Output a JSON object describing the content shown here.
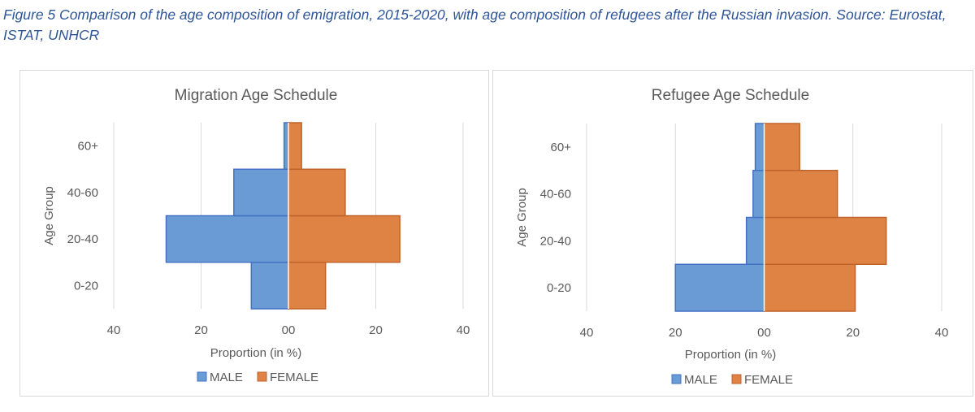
{
  "caption": "Figure 5 Comparison of the age composition of emigration, 2015-2020, with age composition of refugees after the Russian invasion. Source: Eurostat, ISTAT, UNHCR",
  "colors": {
    "male": "#6a9bd5",
    "male_edge": "#4372c4",
    "female": "#df8344",
    "female_edge": "#c0632a",
    "grid": "#d9d9d9",
    "text": "#595959"
  },
  "chart_data": [
    {
      "type": "bar",
      "orientation": "horizontal-pyramid",
      "title": "Migration Age Schedule",
      "xlabel": "Proportion (in %)",
      "ylabel": "Age Group",
      "categories": [
        "0-20",
        "20-40",
        "40-60",
        "60+"
      ],
      "xlim": [
        -40,
        40
      ],
      "xticks": [
        "40",
        "20",
        "00",
        "20",
        "40"
      ],
      "series": [
        {
          "name": "MALE",
          "values": [
            8.5,
            28,
            12.5,
            1
          ]
        },
        {
          "name": "FEMALE",
          "values": [
            8.5,
            25.5,
            13,
            3
          ]
        }
      ],
      "legend": "bottom",
      "grid": true
    },
    {
      "type": "bar",
      "orientation": "horizontal-pyramid",
      "title": "Refugee Age Schedule",
      "xlabel": "Proportion (in %)",
      "ylabel": "Age Group",
      "categories": [
        "0-20",
        "20-40",
        "40-60",
        "60+"
      ],
      "xlim": [
        -40,
        40
      ],
      "xticks": [
        "40",
        "20",
        "00",
        "20",
        "40"
      ],
      "series": [
        {
          "name": "MALE",
          "values": [
            20,
            4,
            2.5,
            2
          ]
        },
        {
          "name": "FEMALE",
          "values": [
            20.5,
            27.5,
            16.5,
            8
          ]
        }
      ],
      "legend": "bottom",
      "grid": true
    }
  ]
}
